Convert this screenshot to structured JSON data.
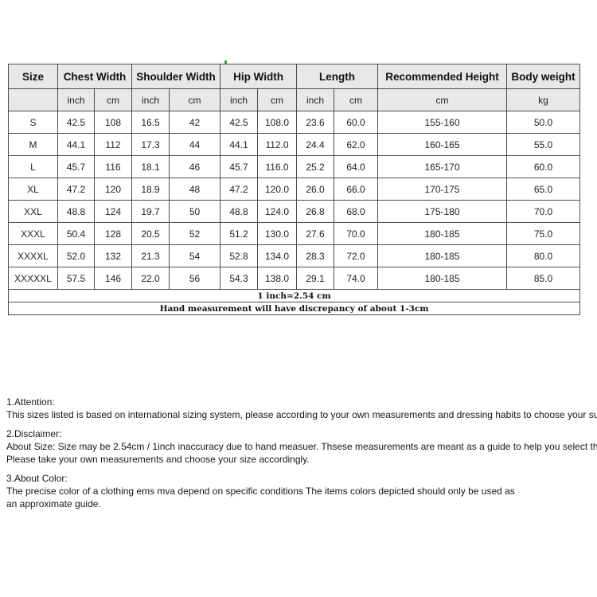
{
  "colors": {
    "header_background": "#e8e8e8",
    "border": "#4d4d4d",
    "page_background": "#ffffff",
    "text": "#1c1c1c"
  },
  "table": {
    "header": {
      "size": "Size",
      "groups": [
        {
          "label": "Chest Width",
          "units": [
            "inch",
            "cm"
          ]
        },
        {
          "label": "Shoulder Width",
          "units": [
            "inch",
            "cm"
          ]
        },
        {
          "label": "Hip Width",
          "units": [
            "inch",
            "cm"
          ]
        },
        {
          "label": "Length",
          "units": [
            "inch",
            "cm"
          ]
        },
        {
          "label": "Recommended Height",
          "units": [
            "cm"
          ]
        },
        {
          "label": "Body weight",
          "units": [
            "kg"
          ]
        }
      ]
    },
    "rows": [
      [
        "S",
        "42.5",
        "108",
        "16.5",
        "42",
        "42.5",
        "108.0",
        "23.6",
        "60.0",
        "155-160",
        "50.0"
      ],
      [
        "M",
        "44.1",
        "112",
        "17.3",
        "44",
        "44.1",
        "112.0",
        "24.4",
        "62.0",
        "160-165",
        "55.0"
      ],
      [
        "L",
        "45.7",
        "116",
        "18.1",
        "46",
        "45.7",
        "116.0",
        "25.2",
        "64.0",
        "165-170",
        "60.0"
      ],
      [
        "XL",
        "47.2",
        "120",
        "18.9",
        "48",
        "47.2",
        "120.0",
        "26.0",
        "66.0",
        "170-175",
        "65.0"
      ],
      [
        "XXL",
        "48.8",
        "124",
        "19.7",
        "50",
        "48.8",
        "124.0",
        "26.8",
        "68.0",
        "175-180",
        "70.0"
      ],
      [
        "XXXL",
        "50.4",
        "128",
        "20.5",
        "52",
        "51.2",
        "130.0",
        "27.6",
        "70.0",
        "180-185",
        "75.0"
      ],
      [
        "XXXXL",
        "52.0",
        "132",
        "21.3",
        "54",
        "52.8",
        "134.0",
        "28.3",
        "72.0",
        "180-185",
        "80.0"
      ],
      [
        "XXXXXL",
        "57.5",
        "146",
        "22.0",
        "56",
        "54.3",
        "138.0",
        "29.1",
        "74.0",
        "180-185",
        "85.0"
      ]
    ],
    "footnotes": [
      "1 inch=2.54 cm",
      "Hand measurement will have discrepancy of about 1-3cm"
    ]
  },
  "notes": [
    {
      "heading": "1.Attention:",
      "lines": [
        "This sizes listed is based on international sizing system, please according to your own measurements and dressing habits to choose your suitable size."
      ]
    },
    {
      "heading": "2.Disclaimer:",
      "lines": [
        "About Size: Size may be 2.54cm / 1inch inaccuracy due to hand measuer. Thsese measurements are meant as a guide to help you select the correct size.",
        "Please take your own measurements and choose your size accordingly."
      ]
    },
    {
      "heading": "3.About Color:",
      "lines": [
        "The precise color of a clothing ems mva depend on specific conditions The items colors depicted should only be used as",
        "an approximate guide."
      ]
    }
  ]
}
